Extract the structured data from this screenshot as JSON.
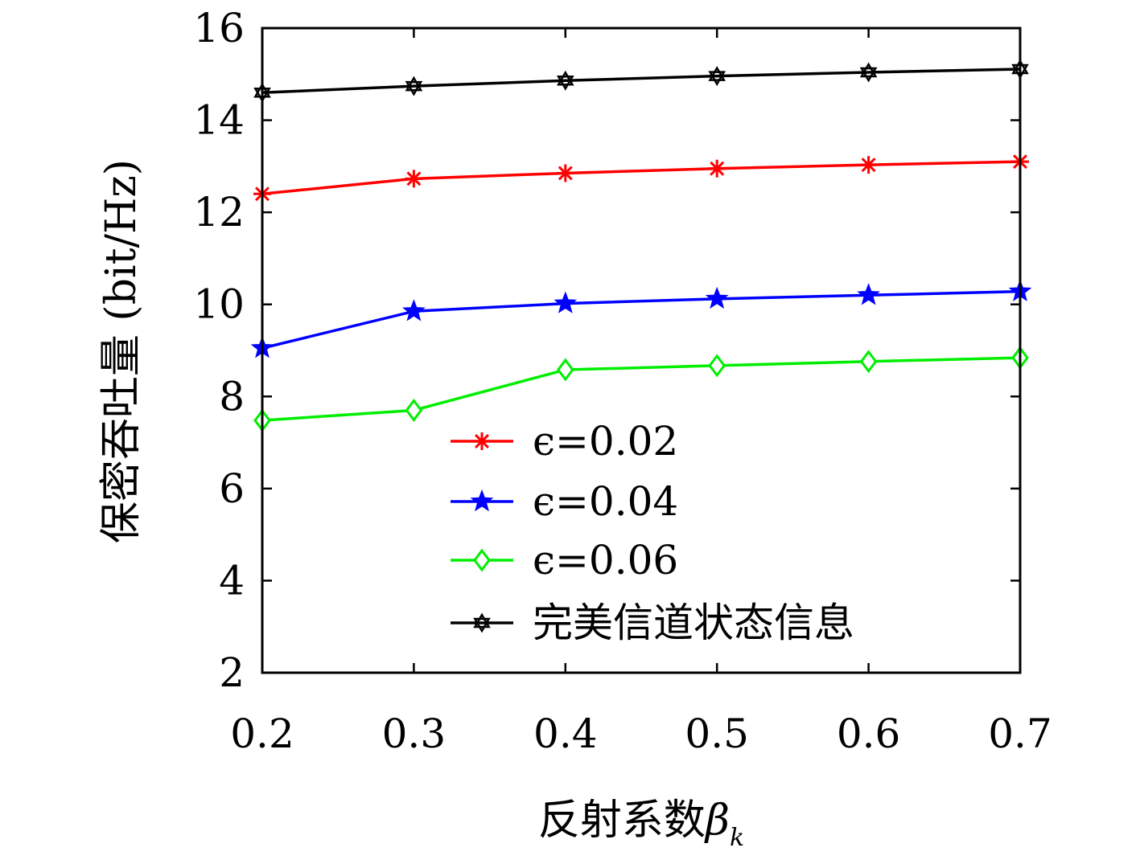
{
  "chart_data": {
    "type": "line",
    "xlabel": "反射系数",
    "xlabel_symbol": "β",
    "xlabel_subscript": "k",
    "ylabel": "保密吞吐量 (bit/Hz)",
    "xlim": [
      0.2,
      0.7
    ],
    "ylim": [
      2,
      16
    ],
    "x": [
      0.2,
      0.3,
      0.4,
      0.5,
      0.6,
      0.7
    ],
    "x_tick_labels": [
      "0.2",
      "0.3",
      "0.4",
      "0.5",
      "0.6",
      "0.7"
    ],
    "y_ticks": [
      2,
      4,
      6,
      8,
      10,
      12,
      14,
      16
    ],
    "y_tick_labels": [
      "2",
      "4",
      "6",
      "8",
      "10",
      "12",
      "14",
      "16"
    ],
    "grid": false,
    "legend_position": "center-bottom",
    "series": [
      {
        "name": "ϵ=0.02",
        "color": "#ff0000",
        "marker": "asterisk",
        "values": [
          12.4,
          12.73,
          12.85,
          12.95,
          13.03,
          13.1
        ]
      },
      {
        "name": "ϵ=0.04",
        "color": "#0000ff",
        "marker": "star",
        "values": [
          9.05,
          9.85,
          10.02,
          10.12,
          10.2,
          10.28
        ]
      },
      {
        "name": "ϵ=0.06",
        "color": "#00ee00",
        "marker": "diamond",
        "values": [
          7.48,
          7.7,
          8.58,
          8.67,
          8.76,
          8.84
        ]
      },
      {
        "name": "完美信道状态信息",
        "color": "#000000",
        "marker": "hexagram",
        "values": [
          14.6,
          14.74,
          14.86,
          14.96,
          15.04,
          15.11
        ]
      }
    ]
  }
}
